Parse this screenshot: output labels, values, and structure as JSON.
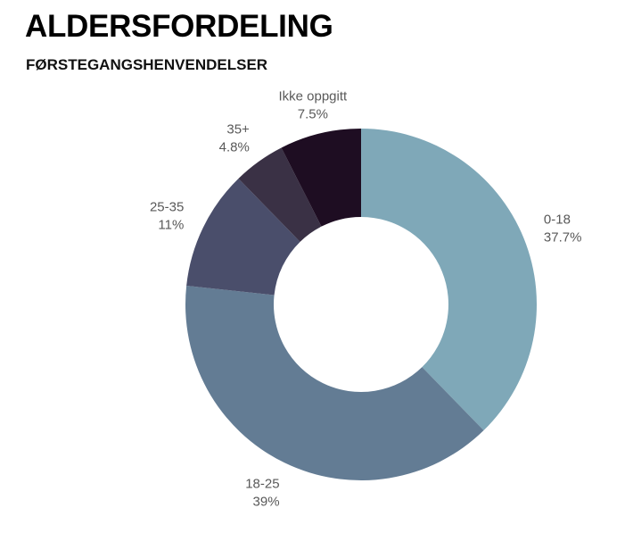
{
  "header": {
    "title": "ALDERSFORDELING",
    "subtitle": "FØRSTEGANGSHENVENDELSER"
  },
  "chart_data": {
    "type": "pie",
    "style": "donut",
    "title": "ALDERSFORDELING",
    "subtitle": "FØRSTEGANGSHENVENDELSER",
    "legend": "none",
    "slices": [
      {
        "label": "0-18",
        "value": 37.7,
        "value_label": "37.7%",
        "color": "#7fa8b8"
      },
      {
        "label": "18-25",
        "value": 39,
        "value_label": "39%",
        "color": "#637c94"
      },
      {
        "label": "25-35",
        "value": 11,
        "value_label": "11%",
        "color": "#4a4e6b"
      },
      {
        "label": "35+",
        "value": 4.8,
        "value_label": "4.8%",
        "color": "#3a3145"
      },
      {
        "label": "Ikke oppgitt",
        "value": 7.5,
        "value_label": "7.5%",
        "color": "#1e0d22"
      }
    ]
  }
}
